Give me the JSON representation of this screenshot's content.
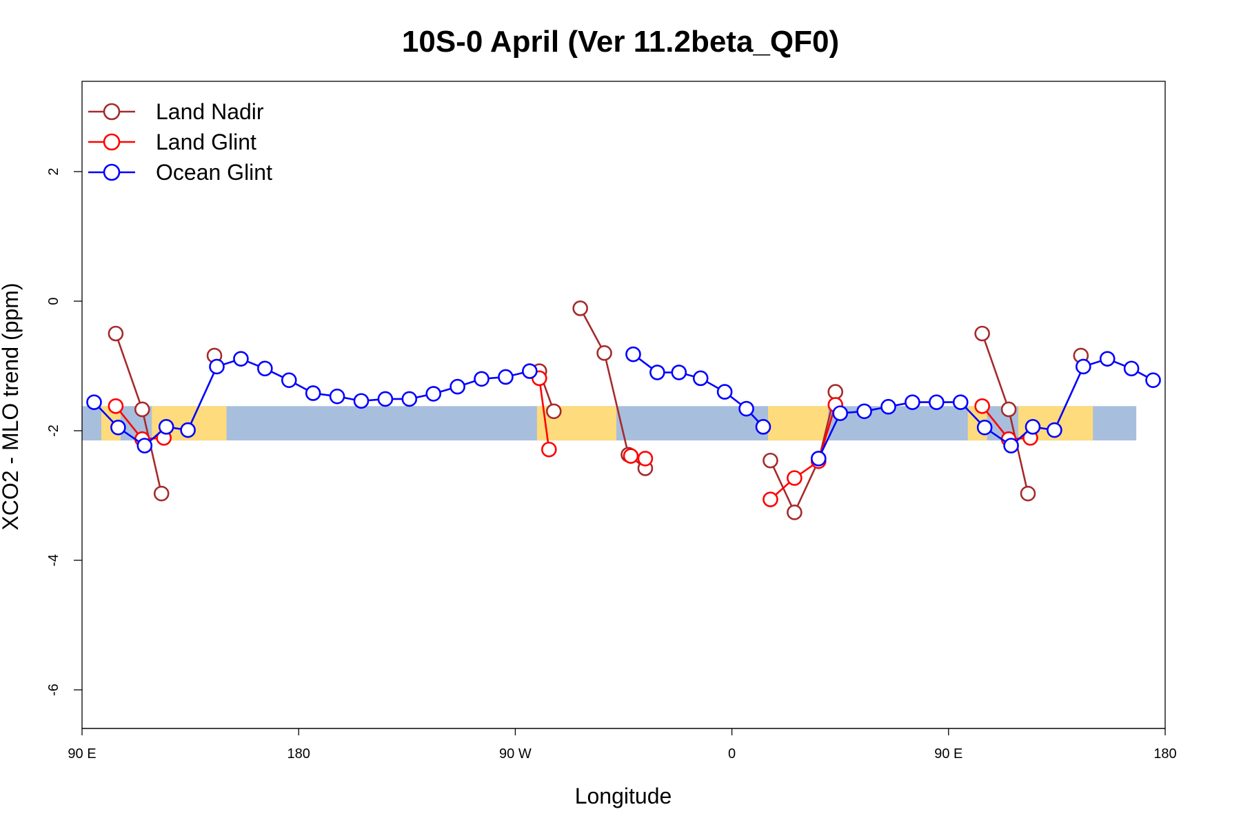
{
  "chart_data": {
    "type": "line",
    "title": "10S-0 April (Ver 11.2beta_QF0)",
    "xlabel": "Longitude",
    "ylabel": "XCO2 - MLO trend (ppm)",
    "xlim": [
      90,
      540
    ],
    "ylim": [
      -6.6,
      3.4
    ],
    "x_ticks": [
      {
        "value": 90,
        "label": "90 E"
      },
      {
        "value": 180,
        "label": "180"
      },
      {
        "value": 270,
        "label": "90 W"
      },
      {
        "value": 360,
        "label": "0"
      },
      {
        "value": 450,
        "label": "90 E"
      },
      {
        "value": 540,
        "label": "180"
      }
    ],
    "y_ticks": [
      {
        "value": 2,
        "label": "2"
      },
      {
        "value": 0,
        "label": "0"
      },
      {
        "value": -2,
        "label": "-2"
      },
      {
        "value": -4,
        "label": "-4"
      },
      {
        "value": -6,
        "label": "-6"
      }
    ],
    "grid": false,
    "legend_position": "top-left",
    "band": {
      "y_min": -2.15,
      "y_max": -1.62,
      "ocean_color": "#a8bedd",
      "land_color": "#fedb7c"
    },
    "band_land_regions": [
      [
        98,
        106
      ],
      [
        119,
        150
      ],
      [
        279,
        312
      ],
      [
        375,
        400
      ],
      [
        458,
        466
      ],
      [
        479,
        510
      ]
    ],
    "series": [
      {
        "name": "Land Nadir",
        "color": "#a52a2a",
        "segments": [
          [
            [
              104,
              -0.5
            ],
            [
              115,
              -1.67
            ],
            [
              123,
              -2.97
            ]
          ],
          [
            [
              145,
              -0.84
            ]
          ],
          [
            [
              280,
              -1.08
            ],
            [
              286,
              -1.7
            ]
          ],
          [
            [
              297,
              -0.11
            ],
            [
              307,
              -0.8
            ],
            [
              317,
              -2.37
            ],
            [
              324,
              -2.58
            ]
          ],
          [
            [
              376,
              -2.46
            ],
            [
              386,
              -3.26
            ],
            [
              396,
              -2.46
            ],
            [
              403,
              -1.4
            ]
          ],
          [
            [
              464,
              -0.5
            ],
            [
              475,
              -1.67
            ],
            [
              483,
              -2.97
            ]
          ],
          [
            [
              505,
              -0.84
            ]
          ]
        ]
      },
      {
        "name": "Land Glint",
        "color": "#ff0000",
        "segments": [
          [
            [
              104,
              -1.62
            ],
            [
              115,
              -2.13
            ],
            [
              124,
              -2.11
            ]
          ],
          [
            [
              280,
              -1.19
            ],
            [
              284,
              -2.29
            ]
          ],
          [
            [
              318,
              -2.39
            ],
            [
              324,
              -2.43
            ]
          ],
          [
            [
              376,
              -3.06
            ],
            [
              386,
              -2.73
            ],
            [
              396,
              -2.47
            ],
            [
              403,
              -1.6
            ]
          ],
          [
            [
              464,
              -1.62
            ],
            [
              475,
              -2.13
            ],
            [
              484,
              -2.11
            ]
          ]
        ]
      },
      {
        "name": "Ocean Glint",
        "color": "#0000ff",
        "segments": [
          [
            [
              95,
              -1.56
            ],
            [
              105,
              -1.95
            ],
            [
              116,
              -2.23
            ],
            [
              125,
              -1.94
            ],
            [
              134,
              -1.99
            ],
            [
              146,
              -1.01
            ],
            [
              156,
              -0.89
            ],
            [
              166,
              -1.04
            ],
            [
              176,
              -1.22
            ],
            [
              186,
              -1.42
            ],
            [
              196,
              -1.47
            ],
            [
              206,
              -1.54
            ],
            [
              216,
              -1.51
            ],
            [
              226,
              -1.51
            ],
            [
              236,
              -1.43
            ],
            [
              246,
              -1.32
            ],
            [
              256,
              -1.2
            ],
            [
              266,
              -1.17
            ],
            [
              276,
              -1.08
            ]
          ],
          [
            [
              319,
              -0.82
            ],
            [
              329,
              -1.1
            ],
            [
              338,
              -1.1
            ],
            [
              347,
              -1.19
            ],
            [
              357,
              -1.4
            ],
            [
              366,
              -1.66
            ],
            [
              373,
              -1.94
            ]
          ],
          [
            [
              396,
              -2.43
            ],
            [
              405,
              -1.73
            ],
            [
              415,
              -1.7
            ],
            [
              425,
              -1.63
            ],
            [
              435,
              -1.56
            ],
            [
              445,
              -1.56
            ],
            [
              455,
              -1.56
            ],
            [
              465,
              -1.95
            ],
            [
              476,
              -2.23
            ],
            [
              485,
              -1.94
            ],
            [
              494,
              -1.99
            ],
            [
              506,
              -1.01
            ],
            [
              516,
              -0.89
            ],
            [
              526,
              -1.04
            ],
            [
              535,
              -1.22
            ]
          ]
        ]
      }
    ]
  }
}
